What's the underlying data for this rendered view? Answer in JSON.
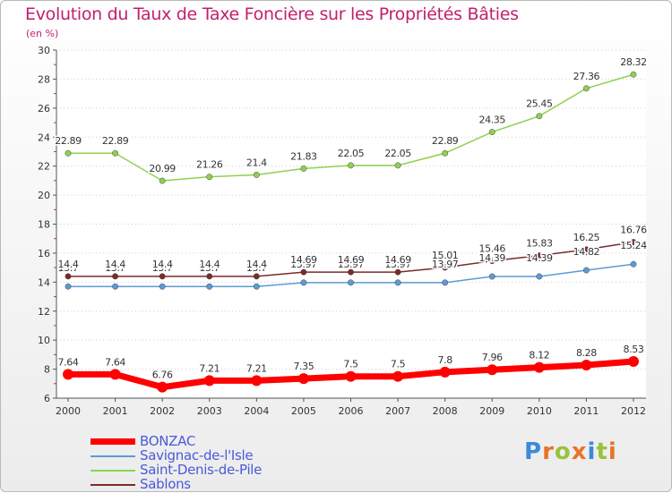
{
  "header": {
    "title": "Evolution du Taux de Taxe Foncière sur les Propriétés Bâties",
    "unit": "(en %)"
  },
  "logo": {
    "text": "Proxiti"
  },
  "colors": {
    "title": "#c21f6d",
    "axis": "#555555",
    "grid": "#cfcfcf",
    "legend_text": "#4a5ad8"
  },
  "chart_data": {
    "type": "line",
    "title": "Evolution du Taux de Taxe Foncière sur les Propriétés Bâties",
    "ylabel": "(en %)",
    "xlabel": "",
    "x": [
      "2000",
      "2001",
      "2002",
      "2003",
      "2004",
      "2005",
      "2006",
      "2007",
      "2008",
      "2009",
      "2010",
      "2011",
      "2012"
    ],
    "ylim": [
      6,
      30
    ],
    "yticks": [
      "6",
      "8",
      "10",
      "12",
      "14",
      "16",
      "18",
      "20",
      "22",
      "24",
      "26",
      "28",
      "30"
    ],
    "grid": "horizontal dotted",
    "legend_position": "bottom-left",
    "series": [
      {
        "name": "BONZAC",
        "color": "#ff0000",
        "width": 7,
        "values": [
          7.64,
          7.64,
          6.76,
          7.21,
          7.21,
          7.35,
          7.5,
          7.5,
          7.8,
          7.96,
          8.12,
          8.28,
          8.53
        ],
        "labels": [
          "7.64",
          "7.64",
          "6.76",
          "7.21",
          "7.21",
          "7.35",
          "7.5",
          "7.5",
          "7.8",
          "7.96",
          "8.12",
          "8.28",
          "8.53"
        ]
      },
      {
        "name": "Savignac-de-l'Isle",
        "color": "#5b9bd5",
        "width": 1.5,
        "values": [
          13.7,
          13.7,
          13.7,
          13.7,
          13.7,
          13.97,
          13.97,
          13.97,
          13.97,
          14.39,
          14.39,
          14.82,
          15.24
        ],
        "labels": [
          "13.7",
          "13.7",
          "13.7",
          "13.7",
          "13.7",
          "13.97",
          "13.97",
          "13.97",
          "13.97",
          "14.39",
          "14.39",
          "14.82",
          "15.24"
        ]
      },
      {
        "name": "Saint-Denis-de-Pile",
        "color": "#8fd14f",
        "width": 1.5,
        "values": [
          22.89,
          22.89,
          20.99,
          21.26,
          21.4,
          21.83,
          22.05,
          22.05,
          22.89,
          24.35,
          25.45,
          27.36,
          28.32
        ],
        "labels": [
          "22.89",
          "22.89",
          "20.99",
          "21.26",
          "21.4",
          "21.83",
          "22.05",
          "22.05",
          "22.89",
          "24.35",
          "25.45",
          "27.36",
          "28.32"
        ]
      },
      {
        "name": "Sablons",
        "color": "#7b2a2a",
        "width": 1.5,
        "values": [
          14.4,
          14.4,
          14.4,
          14.4,
          14.4,
          14.69,
          14.69,
          14.69,
          15.01,
          15.46,
          15.83,
          16.25,
          16.76
        ],
        "labels": [
          "14.4",
          "14.4",
          "14.4",
          "14.4",
          "14.4",
          "14.69",
          "14.69",
          "14.69",
          "15.01",
          "15.46",
          "15.83",
          "16.25",
          "16.76"
        ]
      }
    ]
  }
}
